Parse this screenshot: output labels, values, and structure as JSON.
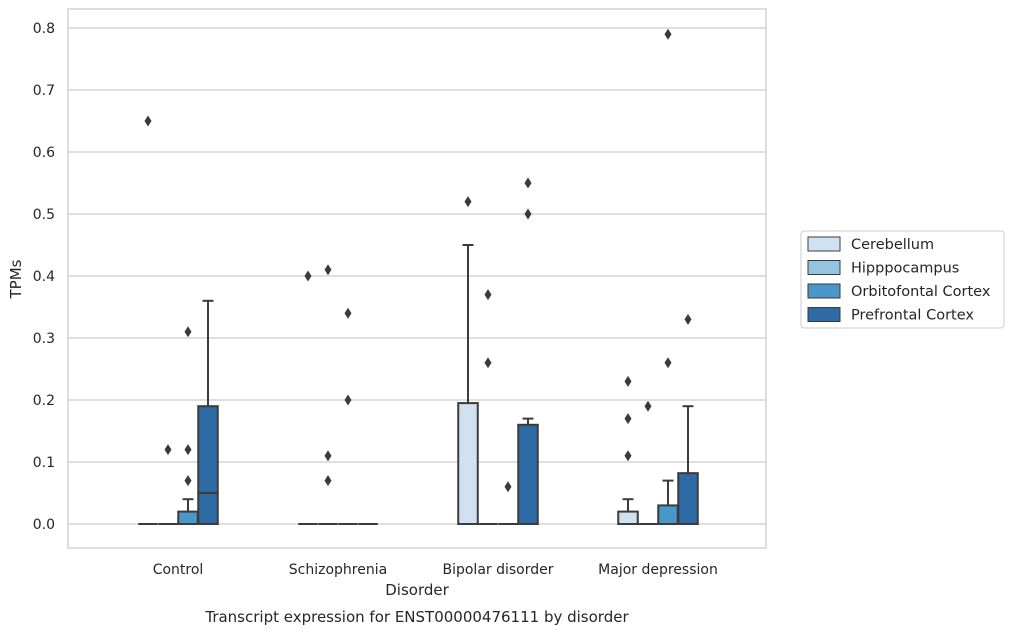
{
  "chart_data": {
    "type": "box",
    "xlabel": "Disorder",
    "ylabel": "TPMs",
    "caption": "Transcript expression for ENST00000476111 by disorder",
    "ylim": [
      -0.04,
      0.83
    ],
    "yticks": [
      "0.0",
      "0.1",
      "0.2",
      "0.3",
      "0.4",
      "0.5",
      "0.6",
      "0.7",
      "0.8"
    ],
    "ytick_values": [
      0,
      0.1,
      0.2,
      0.3,
      0.4,
      0.5,
      0.6,
      0.7,
      0.8
    ],
    "grid": true,
    "legend_position": "right",
    "categories": [
      "Control",
      "Schizophrenia",
      "Bipolar disorder",
      "Major depression"
    ],
    "series": [
      {
        "name": "Cerebellum",
        "color": "#d0e1f2",
        "boxes": [
          {
            "q1": 0,
            "median": 0,
            "q3": 0,
            "whislo": 0,
            "whishi": 0,
            "fliers": [
              0.65
            ]
          },
          {
            "q1": 0,
            "median": 0,
            "q3": 0,
            "whislo": 0,
            "whishi": 0,
            "fliers": [
              0.4
            ]
          },
          {
            "q1": 0,
            "median": 0,
            "q3": 0.195,
            "whislo": 0,
            "whishi": 0.45,
            "fliers": [
              0.52
            ]
          },
          {
            "q1": 0,
            "median": 0,
            "q3": 0.02,
            "whislo": 0,
            "whishi": 0.04,
            "fliers": [
              0.11,
              0.17,
              0.23
            ]
          }
        ]
      },
      {
        "name": "Hipppocampus",
        "color": "#94c4df",
        "boxes": [
          {
            "q1": 0,
            "median": 0,
            "q3": 0,
            "whislo": 0,
            "whishi": 0,
            "fliers": [
              0.12
            ]
          },
          {
            "q1": 0,
            "median": 0,
            "q3": 0,
            "whislo": 0,
            "whishi": 0,
            "fliers": [
              0.07,
              0.11,
              0.41
            ]
          },
          {
            "q1": 0,
            "median": 0,
            "q3": 0,
            "whislo": 0,
            "whishi": 0,
            "fliers": [
              0.26,
              0.37
            ]
          },
          {
            "q1": 0,
            "median": 0,
            "q3": 0,
            "whislo": 0,
            "whishi": 0,
            "fliers": [
              0.19
            ]
          }
        ]
      },
      {
        "name": "Orbitofontal Cortex",
        "color": "#4a98c9",
        "boxes": [
          {
            "q1": 0,
            "median": 0,
            "q3": 0.02,
            "whislo": 0,
            "whishi": 0.04,
            "fliers": [
              0.07,
              0.12,
              0.31
            ]
          },
          {
            "q1": 0,
            "median": 0,
            "q3": 0,
            "whislo": 0,
            "whishi": 0,
            "fliers": [
              0.2,
              0.34
            ]
          },
          {
            "q1": 0,
            "median": 0,
            "q3": 0,
            "whislo": 0,
            "whishi": 0,
            "fliers": [
              0.06
            ]
          },
          {
            "q1": 0,
            "median": 0,
            "q3": 0.03,
            "whislo": 0,
            "whishi": 0.07,
            "fliers": [
              0.26,
              0.79
            ]
          }
        ]
      },
      {
        "name": "Prefrontal Cortex",
        "color": "#2e6aa3",
        "boxes": [
          {
            "q1": 0,
            "median": 0.05,
            "q3": 0.19,
            "whislo": 0,
            "whishi": 0.36,
            "fliers": []
          },
          {
            "q1": 0,
            "median": 0,
            "q3": 0,
            "whislo": 0,
            "whishi": 0,
            "fliers": []
          },
          {
            "q1": 0,
            "median": 0,
            "q3": 0.16,
            "whislo": 0,
            "whishi": 0.17,
            "fliers": [
              0.5,
              0.55
            ]
          },
          {
            "q1": 0,
            "median": 0,
            "q3": 0.082,
            "whislo": 0,
            "whishi": 0.19,
            "fliers": [
              0.33
            ]
          }
        ]
      }
    ]
  }
}
